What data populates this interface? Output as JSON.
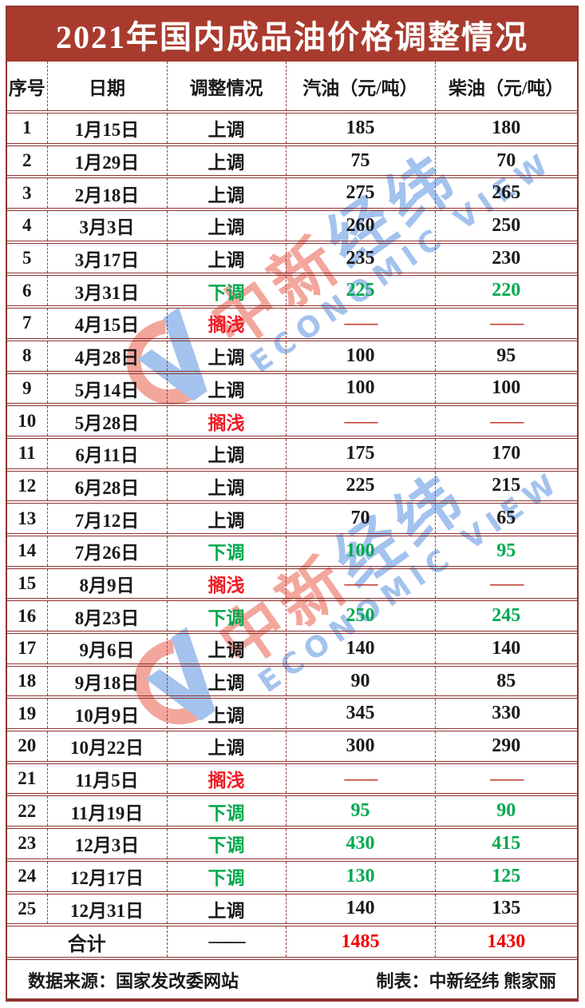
{
  "chart_data": {
    "type": "table",
    "title": "2021年国内成品油价格调整情况",
    "columns": [
      "序号",
      "日期",
      "调整情况",
      "汽油（元/吨）",
      "柴油（元/吨）"
    ],
    "rows": [
      {
        "no": "1",
        "date": "1月15日",
        "status": "上调",
        "gasoline": "185",
        "diesel": "180",
        "direction": "up"
      },
      {
        "no": "2",
        "date": "1月29日",
        "status": "上调",
        "gasoline": "75",
        "diesel": "70",
        "direction": "up"
      },
      {
        "no": "3",
        "date": "2月18日",
        "status": "上调",
        "gasoline": "275",
        "diesel": "265",
        "direction": "up"
      },
      {
        "no": "4",
        "date": "3月3日",
        "status": "上调",
        "gasoline": "260",
        "diesel": "250",
        "direction": "up"
      },
      {
        "no": "5",
        "date": "3月17日",
        "status": "上调",
        "gasoline": "235",
        "diesel": "230",
        "direction": "up"
      },
      {
        "no": "6",
        "date": "3月31日",
        "status": "下调",
        "gasoline": "225",
        "diesel": "220",
        "direction": "down"
      },
      {
        "no": "7",
        "date": "4月15日",
        "status": "搁浅",
        "gasoline": "——",
        "diesel": "——",
        "direction": "stranded"
      },
      {
        "no": "8",
        "date": "4月28日",
        "status": "上调",
        "gasoline": "100",
        "diesel": "95",
        "direction": "up"
      },
      {
        "no": "9",
        "date": "5月14日",
        "status": "上调",
        "gasoline": "100",
        "diesel": "100",
        "direction": "up"
      },
      {
        "no": "10",
        "date": "5月28日",
        "status": "搁浅",
        "gasoline": "——",
        "diesel": "——",
        "direction": "stranded"
      },
      {
        "no": "11",
        "date": "6月11日",
        "status": "上调",
        "gasoline": "175",
        "diesel": "170",
        "direction": "up"
      },
      {
        "no": "12",
        "date": "6月28日",
        "status": "上调",
        "gasoline": "225",
        "diesel": "215",
        "direction": "up"
      },
      {
        "no": "13",
        "date": "7月12日",
        "status": "上调",
        "gasoline": "70",
        "diesel": "65",
        "direction": "up"
      },
      {
        "no": "14",
        "date": "7月26日",
        "status": "下调",
        "gasoline": "100",
        "diesel": "95",
        "direction": "down"
      },
      {
        "no": "15",
        "date": "8月9日",
        "status": "搁浅",
        "gasoline": "——",
        "diesel": "——",
        "direction": "stranded"
      },
      {
        "no": "16",
        "date": "8月23日",
        "status": "下调",
        "gasoline": "250",
        "diesel": "245",
        "direction": "down"
      },
      {
        "no": "17",
        "date": "9月6日",
        "status": "上调",
        "gasoline": "140",
        "diesel": "140",
        "direction": "up"
      },
      {
        "no": "18",
        "date": "9月18日",
        "status": "上调",
        "gasoline": "90",
        "diesel": "85",
        "direction": "up"
      },
      {
        "no": "19",
        "date": "10月9日",
        "status": "上调",
        "gasoline": "345",
        "diesel": "330",
        "direction": "up"
      },
      {
        "no": "20",
        "date": "10月22日",
        "status": "上调",
        "gasoline": "300",
        "diesel": "290",
        "direction": "up"
      },
      {
        "no": "21",
        "date": "11月5日",
        "status": "搁浅",
        "gasoline": "——",
        "diesel": "——",
        "direction": "stranded"
      },
      {
        "no": "22",
        "date": "11月19日",
        "status": "下调",
        "gasoline": "95",
        "diesel": "90",
        "direction": "down"
      },
      {
        "no": "23",
        "date": "12月3日",
        "status": "下调",
        "gasoline": "430",
        "diesel": "415",
        "direction": "down"
      },
      {
        "no": "24",
        "date": "12月17日",
        "status": "下调",
        "gasoline": "130",
        "diesel": "125",
        "direction": "down"
      },
      {
        "no": "25",
        "date": "12月31日",
        "status": "上调",
        "gasoline": "140",
        "diesel": "135",
        "direction": "up"
      }
    ],
    "total": {
      "label": "合计",
      "status": "——",
      "gasoline": "1485",
      "diesel": "1430"
    },
    "layout_hints": {
      "grid": "double horizontal rules, dashed vertical rules",
      "legend_position": "none"
    }
  },
  "footer": {
    "source": "数据来源：国家发改委网站",
    "credit": "制表：中新经纬  熊家丽"
  },
  "watermark": {
    "cn_red": "中新",
    "cn_blue": "经纬",
    "en": "ECONOMIC VIEW"
  },
  "colors": {
    "title_bg": "#a93b2e",
    "title_text": "#ffffff",
    "border": "#8e3430",
    "up_text": "#1a1a1a",
    "down_text": "#00a94f",
    "stranded_text": "#ee1c25",
    "stranded_dash": "#be3a2e",
    "total_value": "#f20000",
    "watermark_red": "#e8503c",
    "watermark_blue": "#4a86de"
  }
}
